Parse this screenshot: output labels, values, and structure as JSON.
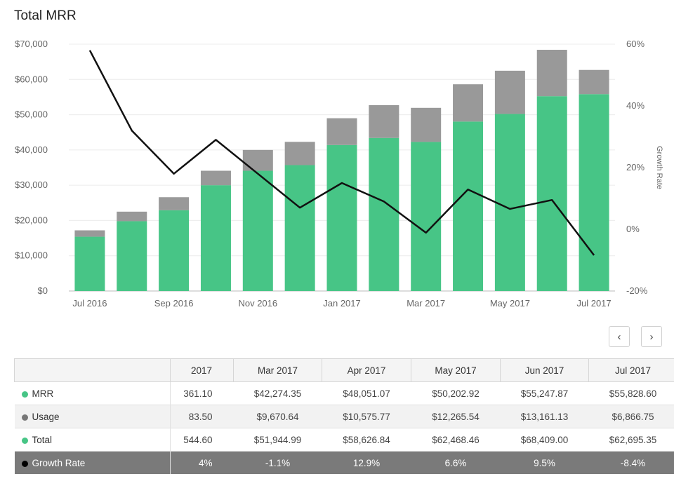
{
  "title": "Total MRR",
  "chart_data": {
    "type": "bar",
    "stacked": true,
    "categories": [
      "Jul 2016",
      "Aug 2016",
      "Sep 2016",
      "Oct 2016",
      "Nov 2016",
      "Dec 2016",
      "Jan 2017",
      "Feb 2017",
      "Mar 2017",
      "Apr 2017",
      "May 2017",
      "Jun 2017",
      "Jul 2017"
    ],
    "x_tick_labels": [
      "Jul 2016",
      "Sep 2016",
      "Nov 2016",
      "Jan 2017",
      "Mar 2017",
      "May 2017",
      "Jul 2017"
    ],
    "series": [
      {
        "name": "MRR",
        "color": "#47c586",
        "values": [
          15400,
          19800,
          22900,
          30000,
          34100,
          35700,
          41400,
          43400,
          42274.35,
          48051.07,
          50202.92,
          55247.87,
          55828.6
        ]
      },
      {
        "name": "Usage",
        "color": "#999999",
        "values": [
          1800,
          2700,
          3700,
          4100,
          5900,
          6600,
          7600,
          9300,
          9670.64,
          10575.77,
          12265.54,
          13161.13,
          6866.75
        ]
      }
    ],
    "line_series": {
      "name": "Growth Rate",
      "color": "#111111",
      "axis": "right",
      "values": [
        58,
        32,
        18,
        29,
        18,
        7,
        15,
        9,
        -1.1,
        12.9,
        6.6,
        9.5,
        -8.4
      ]
    },
    "ylim": [
      0,
      70000
    ],
    "y_ticks": [
      "$0",
      "$10,000",
      "$20,000",
      "$30,000",
      "$40,000",
      "$50,000",
      "$60,000",
      "$70,000"
    ],
    "y2lim": [
      -20,
      60
    ],
    "y2_ticks": [
      "-20%",
      "0%",
      "20%",
      "40%",
      "60%"
    ],
    "y2label": "Growth Rate",
    "grid": true
  },
  "nav": {
    "prev": "‹",
    "next": "›"
  },
  "table": {
    "headers": [
      "2017",
      "Mar 2017",
      "Apr 2017",
      "May 2017",
      "Jun 2017",
      "Jul 2017"
    ],
    "rows": [
      {
        "label": "MRR",
        "color": "#47c586",
        "values": [
          "361.10",
          "$42,274.35",
          "$48,051.07",
          "$50,202.92",
          "$55,247.87",
          "$55,828.60"
        ]
      },
      {
        "label": "Usage",
        "color": "#777777",
        "values": [
          "83.50",
          "$9,670.64",
          "$10,575.77",
          "$12,265.54",
          "$13,161.13",
          "$6,866.75"
        ]
      },
      {
        "label": "Total",
        "color": "#47c586",
        "values": [
          "544.60",
          "$51,944.99",
          "$58,626.84",
          "$62,468.46",
          "$68,409.00",
          "$62,695.35"
        ]
      },
      {
        "label": "Growth Rate",
        "color": "#000000",
        "values": [
          "4%",
          "-1.1%",
          "12.9%",
          "6.6%",
          "9.5%",
          "-8.4%"
        ]
      }
    ]
  }
}
